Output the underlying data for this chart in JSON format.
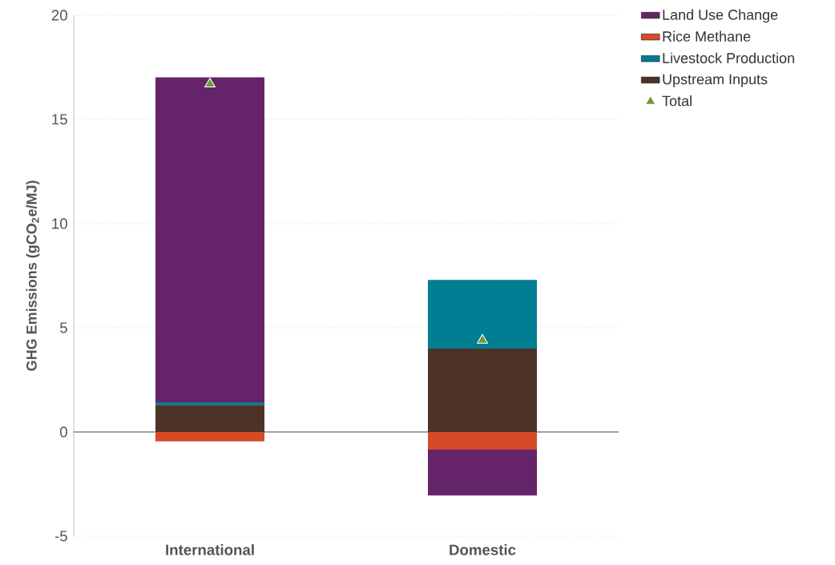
{
  "chart_data": {
    "type": "bar",
    "stacked": true,
    "categories": [
      "International",
      "Domestic"
    ],
    "series": [
      {
        "name": "Upstream Inputs",
        "color": "#4d3228",
        "values": [
          1.3,
          4.0
        ]
      },
      {
        "name": "Livestock Production",
        "color": "#007e93",
        "values": [
          0.12,
          3.3
        ]
      },
      {
        "name": "Rice Methane",
        "color": "#d64a27",
        "values": [
          -0.45,
          -0.85
        ]
      },
      {
        "name": "Land Use Change",
        "color": "#65246a",
        "values": [
          15.6,
          -2.2
        ]
      },
      {
        "name": "Total",
        "type": "scatter",
        "color": "#6d9a3b",
        "values": [
          16.7,
          4.4
        ]
      }
    ],
    "ylabel": "GHG Emissions (gCO$_{2}$e/MJ)",
    "ylim": [
      -5,
      20
    ],
    "yticks": [
      -5,
      0,
      5,
      10,
      15,
      20
    ],
    "grid": "y",
    "legend": "top right",
    "marker": "triangle"
  }
}
